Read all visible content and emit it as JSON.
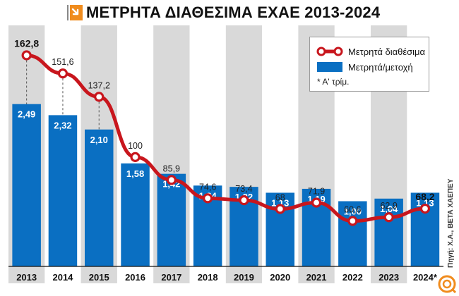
{
  "title": "ΜΕΤΡΗΤΑ ΔΙΑΘΕΣΙΜΑ ΕΧΑΕ 2013-2024",
  "colors": {
    "bar": "#0a6fc2",
    "line": "#c8161d",
    "shade": "#d9d9d9",
    "header_mark": "#f08c1e"
  },
  "legend": {
    "line_label": "Μετρητά διαθέσιμα",
    "bar_label": "Μετρητά/μετοχή",
    "note": "* Α' τρίμ."
  },
  "source": "Πηγή: Χ.Α., ΒΕΤΑ ΧΑΕΠΕΥ",
  "chart_data": {
    "type": "bar",
    "categories": [
      "2013",
      "2014",
      "2015",
      "2016",
      "2017",
      "2018",
      "2019",
      "2020",
      "2021",
      "2022",
      "2023",
      "2024*"
    ],
    "series": [
      {
        "name": "Μετρητά/μετοχή",
        "type": "bar",
        "values": [
          2.49,
          2.32,
          2.1,
          1.58,
          1.42,
          1.24,
          1.22,
          1.13,
          1.19,
          1.0,
          1.04,
          1.13
        ],
        "labels": [
          "2,49",
          "2,32",
          "2,10",
          "1,58",
          "1,42",
          "1,24",
          "1,22",
          "1,13",
          "1,19",
          "1,00",
          "1,04",
          "1,13"
        ]
      },
      {
        "name": "Μετρητά διαθέσιμα",
        "type": "line",
        "values": [
          162.8,
          151.6,
          137.2,
          100,
          85.9,
          74.6,
          73.4,
          68,
          71.9,
          60.6,
          62.9,
          68.2
        ],
        "labels": [
          "162,8",
          "151,6",
          "137,2",
          "100",
          "85,9",
          "74,6",
          "73,4",
          "68",
          "71,9",
          "60,6",
          "62,9",
          "68,2"
        ],
        "bold_labels": [
          0,
          11
        ]
      }
    ],
    "title": "ΜΕΤΡΗΤΑ ΔΙΑΘΕΣΙΜΑ ΕΧΑΕ 2013-2024",
    "xlabel": "",
    "ylabel": "",
    "grid": false,
    "legend_position": "top-right"
  }
}
